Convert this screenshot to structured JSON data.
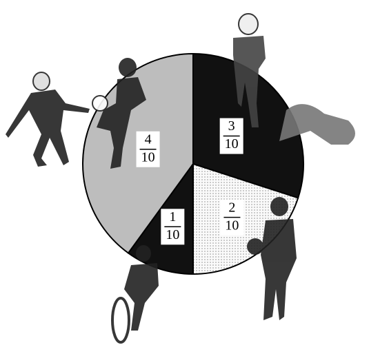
{
  "chart_data": {
    "type": "pie",
    "values": [
      0.3,
      0.2,
      0.1,
      0.4
    ],
    "value_labels": [
      [
        "3",
        "10"
      ],
      [
        "2",
        "10"
      ],
      [
        "1",
        "10"
      ],
      [
        "4",
        "10"
      ]
    ],
    "colors": [
      "#111111",
      "dots",
      "#111111",
      "#bdbdbd"
    ],
    "start_angle": 0,
    "direction": "clockwise"
  }
}
